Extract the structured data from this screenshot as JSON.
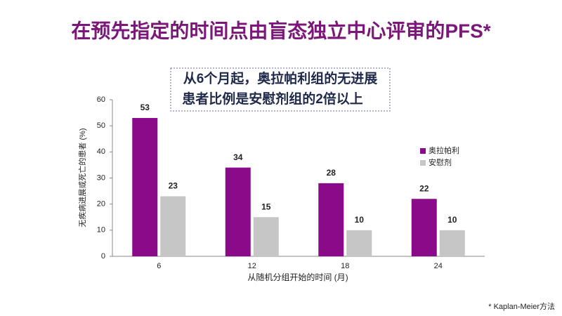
{
  "chart_data": {
    "type": "bar",
    "title": "在预先指定的时间点由盲态独立中心评审的PFS*",
    "annotation": [
      "从6个月起，奥拉帕利组的无进展",
      "患者比例是安慰剂组的2倍以上"
    ],
    "x_label": "从随机分组开始的时间 (月)",
    "y_label": "无疾病进展或死亡的患者 (%)",
    "footnote": "* Kaplan-Meier方法",
    "categories": [
      "6",
      "12",
      "18",
      "24"
    ],
    "series": [
      {
        "name": "奥拉帕利",
        "color": "#8a0a8a",
        "values": [
          53,
          34,
          28,
          22
        ],
        "value_label_colors": [
          "#1f2a4a",
          "#e0201b",
          "#1f2a4a",
          "#e0201b"
        ]
      },
      {
        "name": "安慰剂",
        "color": "#c6c6c6",
        "values": [
          23,
          15,
          10,
          10
        ],
        "value_label_colors": [
          "#1f2a4a",
          "#1f2a4a",
          "#1f2a4a",
          "#1f2a4a"
        ]
      }
    ],
    "ylim": [
      0,
      60
    ],
    "yticks": [
      0,
      10,
      20,
      30,
      40,
      50,
      60
    ],
    "grid": false,
    "legend": "right"
  }
}
